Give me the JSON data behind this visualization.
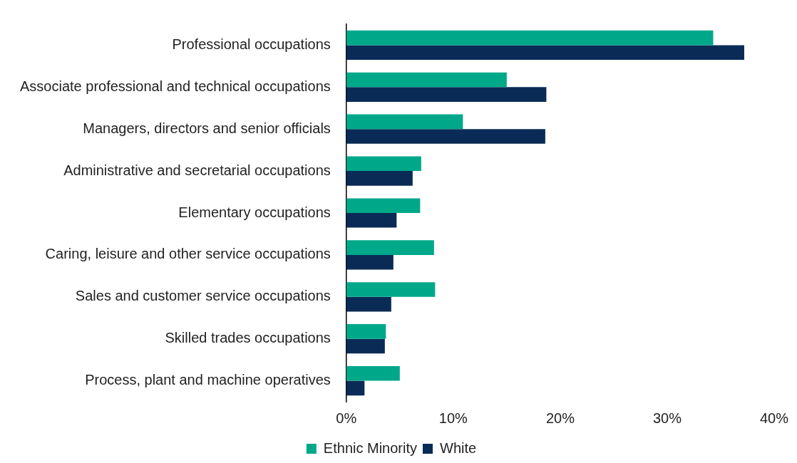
{
  "chart_data": {
    "type": "bar",
    "orientation": "horizontal",
    "categories": [
      "Professional occupations",
      "Associate professional and technical occupations",
      "Managers, directors and senior officials",
      "Administrative and secretarial occupations",
      "Elementary occupations",
      "Caring, leisure and other service occupations",
      "Sales and customer service occupations",
      "Skilled trades occupations",
      "Process, plant and machine operatives"
    ],
    "series": [
      {
        "name": "Ethnic Minority",
        "color": "#00a88a",
        "values": [
          34.3,
          15.0,
          10.9,
          7.0,
          6.9,
          8.2,
          8.3,
          3.7,
          5.0
        ]
      },
      {
        "name": "White",
        "color": "#0a2b55",
        "values": [
          37.2,
          18.7,
          18.6,
          6.2,
          4.7,
          4.4,
          4.2,
          3.6,
          1.7
        ]
      }
    ],
    "xlim": [
      0,
      40
    ],
    "xticks": [
      {
        "value": 0,
        "label": "0%"
      },
      {
        "value": 10,
        "label": "10%"
      },
      {
        "value": 20,
        "label": "20%"
      },
      {
        "value": 30,
        "label": "30%"
      },
      {
        "value": 40,
        "label": "40%"
      }
    ],
    "grid": false,
    "legend": "bottom"
  }
}
